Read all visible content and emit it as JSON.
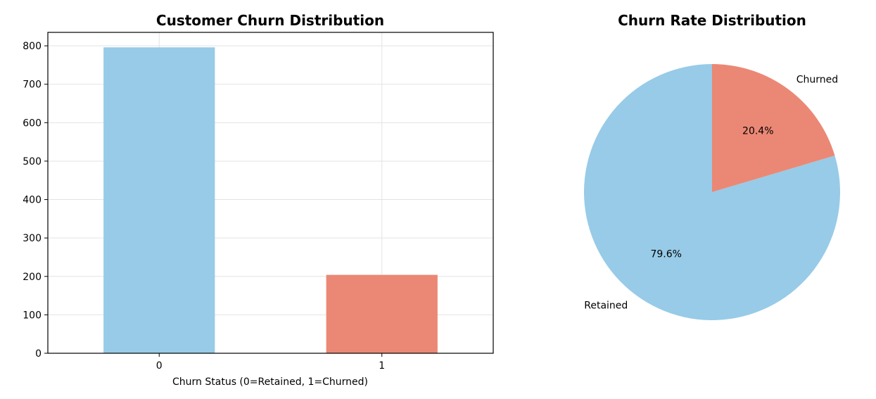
{
  "chart_data": [
    {
      "type": "bar",
      "title": "Customer Churn Distribution",
      "xlabel": "Churn Status (0=Retained, 1=Churned)",
      "ylabel": "",
      "categories": [
        "0",
        "1"
      ],
      "values": [
        796,
        204
      ],
      "ylim": [
        0,
        835
      ],
      "yticks": [
        0,
        100,
        200,
        300,
        400,
        500,
        600,
        700,
        800
      ],
      "ytick_labels": [
        "0",
        "100",
        "200",
        "300",
        "400",
        "500",
        "600",
        "700",
        "800"
      ],
      "grid": true,
      "colors": [
        "#97cbe8",
        "#eb8875"
      ]
    },
    {
      "type": "pie",
      "title": "Churn Rate Distribution",
      "labels": [
        "Retained",
        "Churned"
      ],
      "values": [
        79.6,
        20.4
      ],
      "pct_labels": [
        "79.6%",
        "20.4%"
      ],
      "start_angle_deg": 90,
      "direction": "counterclockwise",
      "colors": [
        "#97cbe8",
        "#eb8875"
      ]
    }
  ]
}
